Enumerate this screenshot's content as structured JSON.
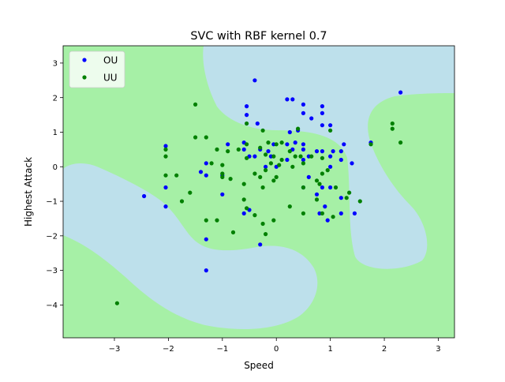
{
  "chart_data": {
    "type": "scatter",
    "title": "SVC with RBF kernel 0.7",
    "xlabel": "Speed",
    "ylabel": "Highest Attack",
    "xlim": [
      -3.95,
      3.3
    ],
    "ylim": [
      -4.95,
      3.5
    ],
    "x_ticks": [
      -3,
      -2,
      -1,
      0,
      1,
      2,
      3
    ],
    "y_ticks": [
      -4,
      -3,
      -2,
      -1,
      0,
      1,
      2,
      3
    ],
    "grid": false,
    "legend_position": "top-left",
    "background_colors": {
      "OU_region": "#bde0eb",
      "UU_region": "#a6f0a6"
    },
    "series": [
      {
        "name": "OU",
        "color": "#0000ff",
        "points": [
          [
            -0.4,
            2.5
          ],
          [
            -0.55,
            1.75
          ],
          [
            -0.55,
            1.5
          ],
          [
            -0.35,
            1.25
          ],
          [
            -0.6,
            0.7
          ],
          [
            -0.3,
            0.5
          ],
          [
            -0.6,
            0.5
          ],
          [
            -0.05,
            0.65
          ],
          [
            -0.9,
            0.65
          ],
          [
            -0.4,
            0.3
          ],
          [
            -0.5,
            0.3
          ],
          [
            -1.3,
            0.1
          ],
          [
            -1.4,
            -0.15
          ],
          [
            -1.3,
            -0.25
          ],
          [
            -1.0,
            -0.25
          ],
          [
            -1.0,
            -0.8
          ],
          [
            -0.6,
            -1.35
          ],
          [
            -0.5,
            -1.25
          ],
          [
            -0.3,
            -2.25
          ],
          [
            -1.3,
            -2.1
          ],
          [
            -1.3,
            -3.0
          ],
          [
            -2.05,
            -0.6
          ],
          [
            -2.05,
            -1.15
          ],
          [
            -2.05,
            0.6
          ],
          [
            -2.45,
            -0.85
          ],
          [
            0.2,
            1.95
          ],
          [
            0.3,
            1.95
          ],
          [
            0.5,
            1.8
          ],
          [
            0.5,
            1.55
          ],
          [
            0.65,
            1.4
          ],
          [
            0.85,
            1.75
          ],
          [
            0.85,
            1.55
          ],
          [
            0.85,
            1.2
          ],
          [
            1.0,
            1.2
          ],
          [
            0.4,
            1.05
          ],
          [
            0.25,
            1.0
          ],
          [
            0.2,
            0.65
          ],
          [
            0.5,
            0.65
          ],
          [
            0.5,
            0.5
          ],
          [
            0.3,
            0.5
          ],
          [
            0.6,
            0.3
          ],
          [
            0.85,
            0.45
          ],
          [
            0.75,
            0.45
          ],
          [
            1.05,
            0.45
          ],
          [
            1.25,
            0.65
          ],
          [
            1.2,
            0.45
          ],
          [
            1.0,
            0.3
          ],
          [
            1.2,
            0.2
          ],
          [
            1.4,
            0.1
          ],
          [
            1.0,
            0.0
          ],
          [
            0.6,
            -0.3
          ],
          [
            0.5,
            -0.6
          ],
          [
            0.85,
            -0.6
          ],
          [
            1.0,
            -0.6
          ],
          [
            1.2,
            -0.9
          ],
          [
            0.75,
            -0.8
          ],
          [
            0.9,
            -1.15
          ],
          [
            0.8,
            -1.35
          ],
          [
            0.95,
            -1.55
          ],
          [
            1.2,
            -1.35
          ],
          [
            1.45,
            -1.35
          ],
          [
            1.75,
            0.7
          ],
          [
            2.3,
            2.15
          ],
          [
            0.0,
            0.0
          ],
          [
            -0.2,
            0.0
          ],
          [
            0.2,
            0.2
          ],
          [
            0.5,
            0.2
          ],
          [
            -0.1,
            0.3
          ],
          [
            0.35,
            0.7
          ],
          [
            -0.15,
            0.45
          ]
        ]
      },
      {
        "name": "UU",
        "color": "#008000",
        "points": [
          [
            -1.5,
            1.8
          ],
          [
            -1.5,
            0.85
          ],
          [
            -1.3,
            0.85
          ],
          [
            -0.55,
            1.25
          ],
          [
            -0.25,
            1.05
          ],
          [
            -0.15,
            0.7
          ],
          [
            0.1,
            0.7
          ],
          [
            0.4,
            1.1
          ],
          [
            1.0,
            1.05
          ],
          [
            -1.1,
            0.5
          ],
          [
            -0.9,
            0.45
          ],
          [
            -0.7,
            0.5
          ],
          [
            -0.55,
            0.65
          ],
          [
            -0.55,
            0.25
          ],
          [
            -0.3,
            0.55
          ],
          [
            -0.2,
            0.35
          ],
          [
            -0.05,
            0.3
          ],
          [
            0.0,
            0.65
          ],
          [
            0.25,
            0.45
          ],
          [
            0.35,
            0.3
          ],
          [
            0.45,
            0.3
          ],
          [
            0.65,
            0.3
          ],
          [
            0.85,
            0.25
          ],
          [
            0.5,
            0.1
          ],
          [
            0.3,
            0.0
          ],
          [
            0.05,
            0.05
          ],
          [
            -0.2,
            -0.1
          ],
          [
            -0.4,
            -0.2
          ],
          [
            -0.3,
            -0.3
          ],
          [
            -0.05,
            -0.4
          ],
          [
            0.0,
            -0.3
          ],
          [
            -0.25,
            -0.6
          ],
          [
            -0.6,
            -0.5
          ],
          [
            -0.85,
            -0.35
          ],
          [
            -1.0,
            -0.3
          ],
          [
            -1.0,
            -0.2
          ],
          [
            -1.2,
            0.1
          ],
          [
            -1.0,
            0.05
          ],
          [
            -1.6,
            -0.75
          ],
          [
            -1.75,
            -1.0
          ],
          [
            -1.85,
            -0.25
          ],
          [
            -2.05,
            -0.25
          ],
          [
            -2.05,
            0.3
          ],
          [
            -2.05,
            0.5
          ],
          [
            -0.6,
            -0.95
          ],
          [
            -0.55,
            -1.2
          ],
          [
            -0.4,
            -1.4
          ],
          [
            -0.25,
            -1.65
          ],
          [
            -0.2,
            -1.95
          ],
          [
            -0.05,
            -1.55
          ],
          [
            -0.8,
            -1.9
          ],
          [
            -1.1,
            -1.55
          ],
          [
            -1.3,
            -1.55
          ],
          [
            0.25,
            -1.15
          ],
          [
            0.5,
            -1.35
          ],
          [
            0.5,
            -0.6
          ],
          [
            0.75,
            -0.4
          ],
          [
            0.8,
            -0.5
          ],
          [
            0.85,
            -0.2
          ],
          [
            0.95,
            -0.1
          ],
          [
            0.75,
            -0.95
          ],
          [
            0.85,
            -1.35
          ],
          [
            1.05,
            -1.45
          ],
          [
            1.1,
            -0.6
          ],
          [
            1.3,
            -0.9
          ],
          [
            1.35,
            -0.75
          ],
          [
            1.55,
            -1.0
          ],
          [
            2.15,
            1.25
          ],
          [
            2.15,
            1.1
          ],
          [
            2.3,
            0.7
          ],
          [
            1.75,
            0.65
          ],
          [
            -2.95,
            -3.95
          ],
          [
            0.1,
            0.2
          ],
          [
            -0.1,
            0.1
          ]
        ]
      }
    ]
  }
}
